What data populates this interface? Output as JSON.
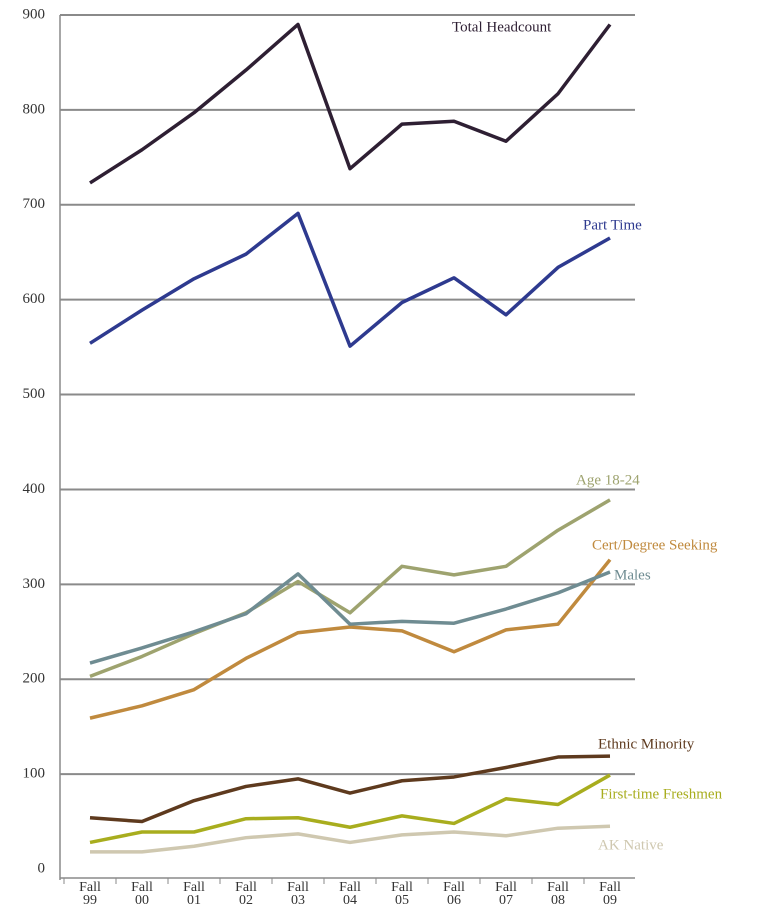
{
  "chart_data": {
    "type": "line",
    "categories": [
      "Fall 99",
      "Fall 00",
      "Fall 01",
      "Fall 02",
      "Fall 03",
      "Fall 04",
      "Fall 05",
      "Fall 06",
      "Fall 07",
      "Fall 08",
      "Fall 09"
    ],
    "series": [
      {
        "name": "Total Headcount",
        "color": "#2e1f33",
        "values": [
          723,
          758,
          797,
          842,
          890,
          738,
          785,
          788,
          767,
          817,
          890
        ]
      },
      {
        "name": "Part Time",
        "color": "#2e3a8f",
        "values": [
          554,
          589,
          622,
          648,
          691,
          551,
          597,
          623,
          584,
          634,
          665
        ]
      },
      {
        "name": "Age 18-24",
        "color": "#9ea36f",
        "values": [
          203,
          224,
          248,
          270,
          303,
          270,
          319,
          310,
          319,
          357,
          389
        ]
      },
      {
        "name": "Cert/Degree Seeking",
        "color": "#c08a3e",
        "values": [
          159,
          172,
          189,
          222,
          249,
          255,
          251,
          229,
          252,
          258,
          326
        ]
      },
      {
        "name": "Males",
        "color": "#6f8c92",
        "values": [
          217,
          233,
          250,
          269,
          311,
          258,
          261,
          259,
          274,
          291,
          313
        ]
      },
      {
        "name": "Ethnic Minority",
        "color": "#5e3a1e",
        "values": [
          54,
          50,
          72,
          87,
          95,
          80,
          93,
          97,
          107,
          118,
          119
        ]
      },
      {
        "name": "First-time Freshmen",
        "color": "#a8ad1e",
        "values": [
          28,
          39,
          39,
          53,
          54,
          44,
          56,
          48,
          74,
          68,
          99
        ]
      },
      {
        "name": "AK Native",
        "color": "#cfc8b0",
        "values": [
          18,
          18,
          24,
          33,
          37,
          28,
          36,
          39,
          35,
          43,
          45
        ]
      }
    ],
    "ylim": [
      0,
      900
    ],
    "yticks": [
      0,
      100,
      200,
      300,
      400,
      500,
      600,
      700,
      800,
      900
    ],
    "grid": true
  }
}
